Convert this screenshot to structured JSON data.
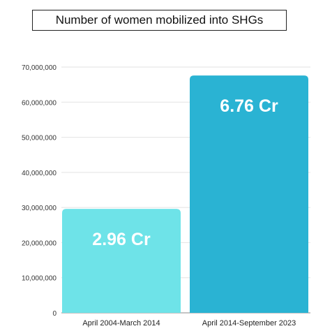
{
  "chart_data": {
    "type": "bar",
    "title": "Number of women mobilized into SHGs",
    "categories": [
      "April 2004-March 2014",
      "April 2014-September 2023"
    ],
    "values": [
      29600000,
      67600000
    ],
    "data_labels": [
      "2.96 Cr",
      "6.76 Cr"
    ],
    "bar_colors": [
      "#6ee3e8",
      "#2ab3d3"
    ],
    "ylim": [
      0,
      70000000
    ],
    "yticks": [
      0,
      10000000,
      20000000,
      30000000,
      40000000,
      50000000,
      60000000,
      70000000
    ],
    "ytick_labels": [
      "0",
      "10,000,000",
      "20,000,000",
      "30,000,000",
      "40,000,000",
      "50,000,000",
      "60,000,000",
      "70,000,000"
    ],
    "grid": true,
    "legend": "none"
  }
}
